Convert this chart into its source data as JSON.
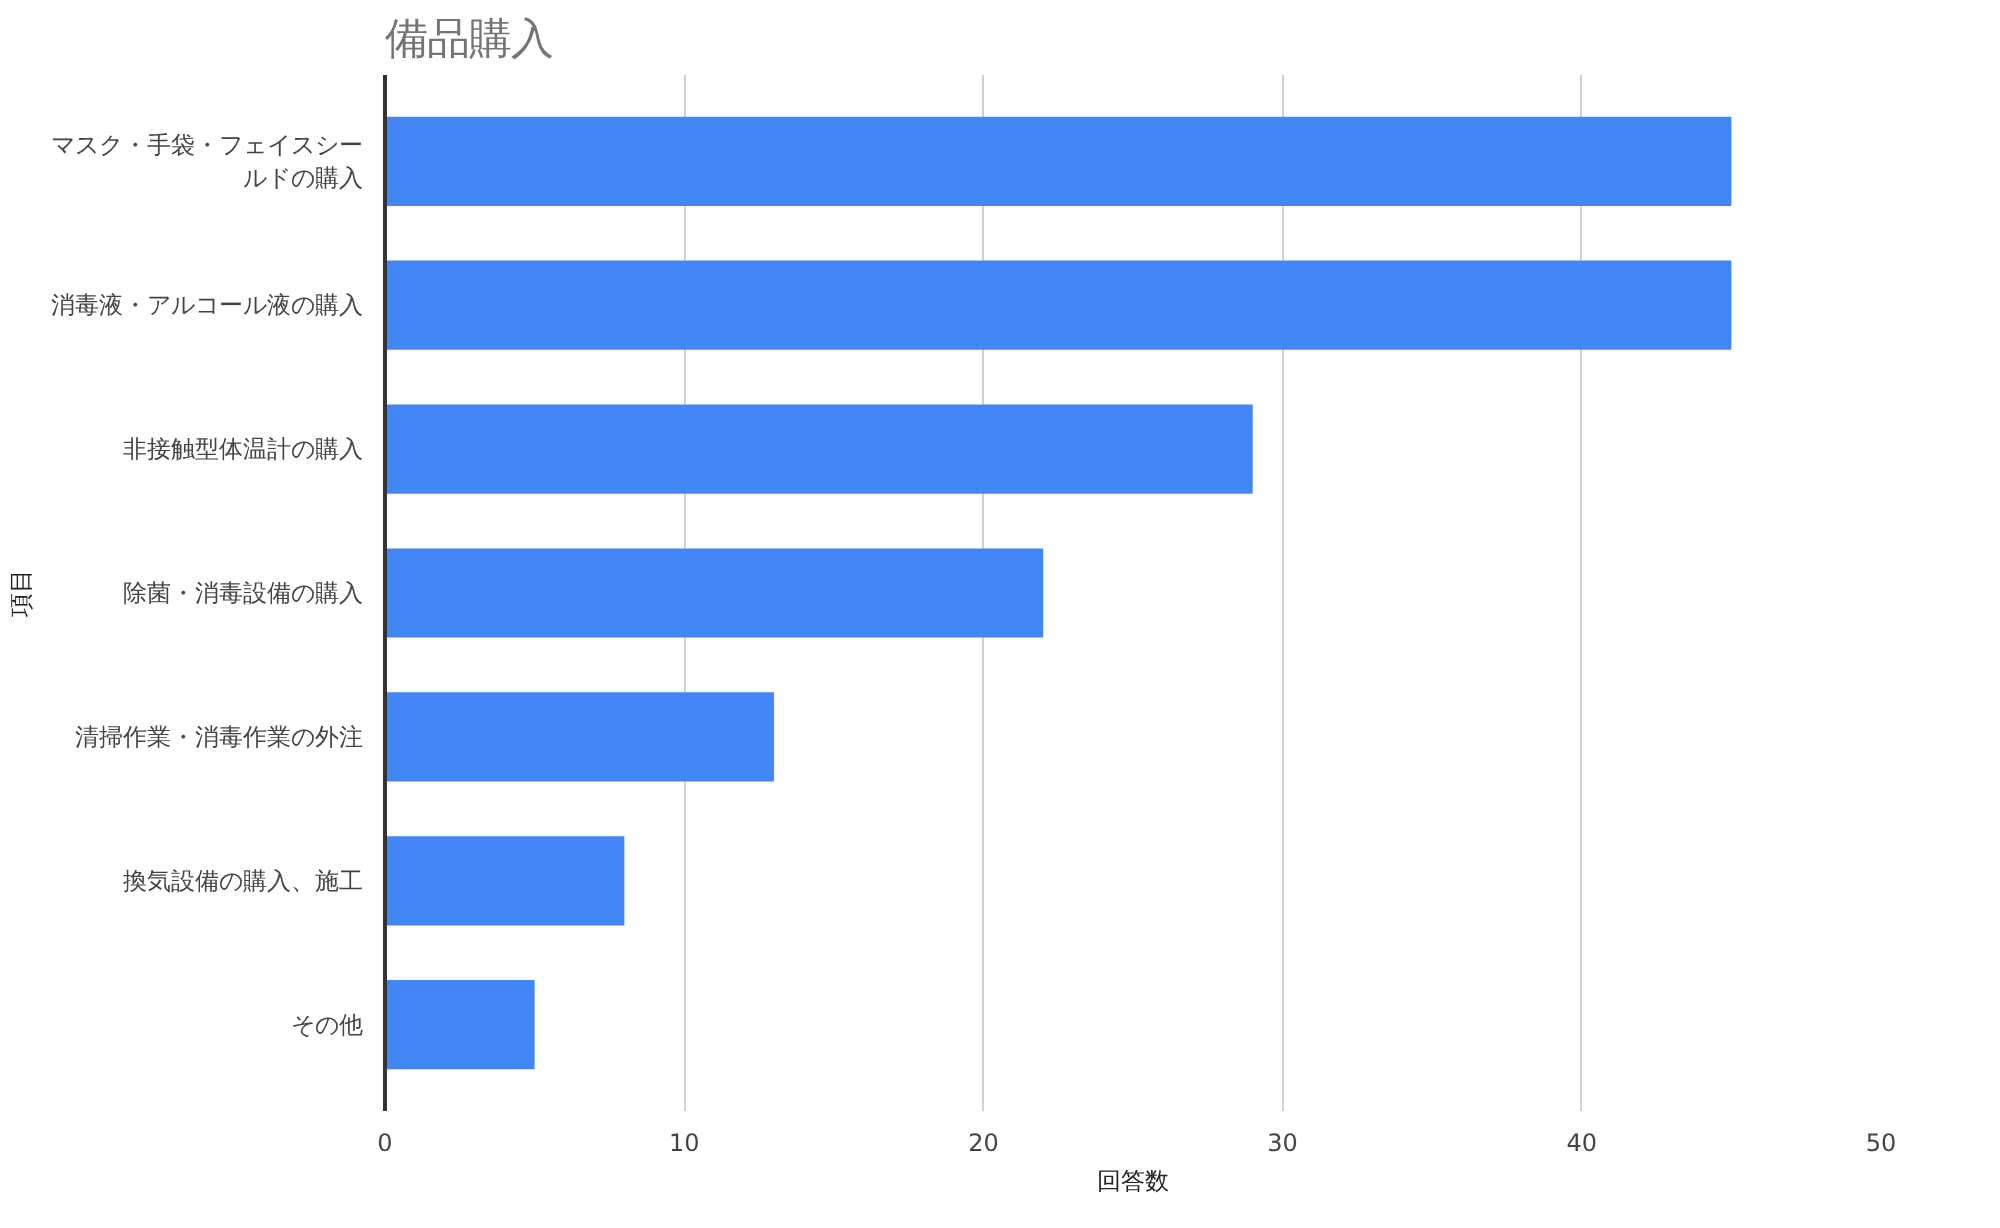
{
  "chart_data": {
    "type": "bar",
    "orientation": "horizontal",
    "title": "備品購入",
    "xlabel": "回答数",
    "ylabel": "項目",
    "categories": [
      "マスク・手袋・フェイスシールドの購入",
      "消毒液・アルコール液の購入",
      "非接触型体温計の購入",
      "除菌・消毒設備の購入",
      "清掃作業・消毒作業の外注",
      "換気設備の購入、施工",
      "その他"
    ],
    "values": [
      45,
      45,
      29,
      22,
      13,
      8,
      5
    ],
    "color": "#4285f4",
    "xlim": [
      0,
      50
    ],
    "xticks": [
      0,
      10,
      20,
      30,
      40,
      50
    ],
    "grid": "x"
  }
}
